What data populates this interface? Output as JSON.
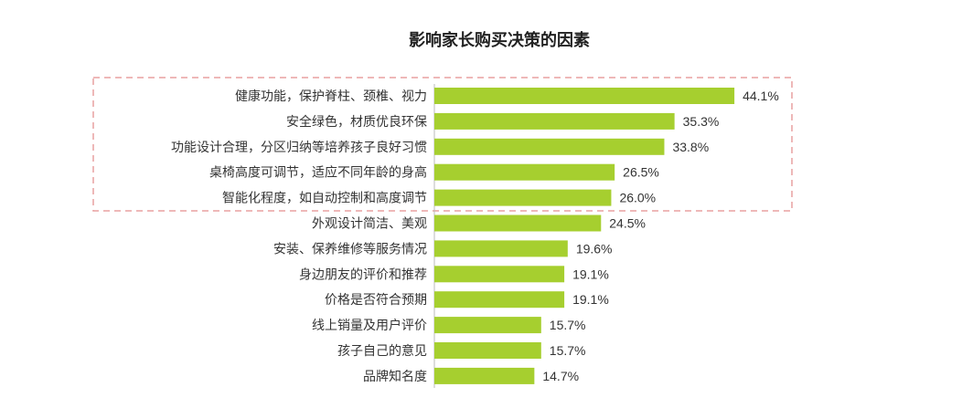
{
  "chart_data": {
    "type": "bar",
    "orientation": "horizontal",
    "title": "影响家长购买决策的因素",
    "xlabel": "",
    "ylabel": "",
    "xlim": [
      0,
      50
    ],
    "grid": false,
    "legend": "none",
    "bar_color": "#a6cf2f",
    "highlight_box_color": "#e8a0a0",
    "highlighted_categories": 5,
    "categories": [
      "健康功能，保护脊柱、颈椎、视力",
      "安全绿色，材质优良环保",
      "功能设计合理，分区归纳等培养孩子良好习惯",
      "桌椅高度可调节，适应不同年龄的身高",
      "智能化程度，如自动控制和高度调节",
      "外观设计简洁、美观",
      "安装、保养维修等服务情况",
      "身边朋友的评价和推荐",
      "价格是否符合预期",
      "线上销量及用户评价",
      "孩子自己的意见",
      "品牌知名度"
    ],
    "values": [
      44.1,
      35.3,
      33.8,
      26.5,
      26.0,
      24.5,
      19.6,
      19.1,
      19.1,
      15.7,
      15.7,
      14.7
    ],
    "value_labels": [
      "44.1%",
      "35.3%",
      "33.8%",
      "26.5%",
      "26.0%",
      "24.5%",
      "19.6%",
      "19.1%",
      "19.1%",
      "15.7%",
      "15.7%",
      "14.7%"
    ]
  }
}
